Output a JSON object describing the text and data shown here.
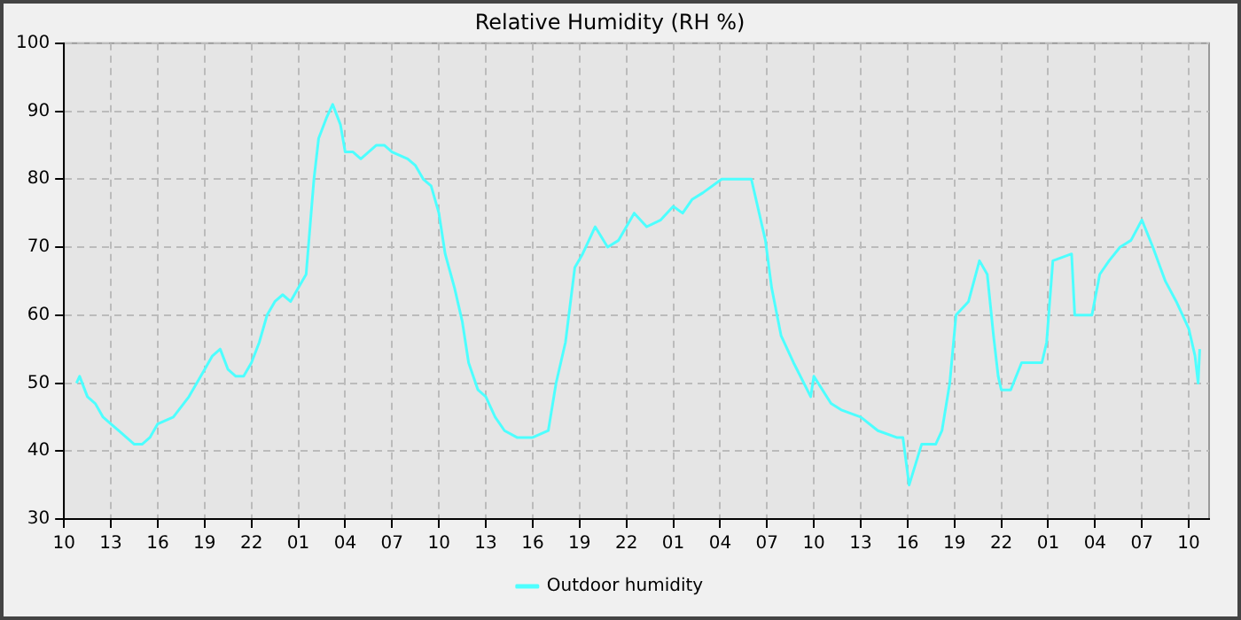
{
  "chart_data": {
    "type": "line",
    "title": "Relative Humidity (RH %)",
    "x": [
      "--01-01T10:48",
      "--01-01T11:00",
      "--01-01T11:30",
      "--01-01T12:00",
      "--01-01T12:30",
      "--01-01T13:00",
      "--01-01T13:30",
      "--01-01T14:00",
      "--01-01T14:30",
      "--01-01T15:00",
      "--01-01T15:30",
      "--01-01T16:00",
      "--01-01T17:00",
      "--01-01T18:00",
      "--01-01T18:30",
      "--01-01T19:00",
      "--01-01T19:30",
      "--01-01T20:00",
      "--01-01T20:30",
      "--01-01T21:00",
      "--01-01T21:30",
      "--01-01T22:00",
      "--01-01T22:30",
      "--01-01T23:00",
      "--01-01T23:30",
      "--01-02T00:00",
      "--01-02T00:30",
      "--01-02T01:00",
      "--01-02T01:30",
      "--01-02T02:00",
      "--01-02T02:18",
      "--01-02T02:48",
      "--01-02T03:12",
      "--01-02T03:42",
      "--01-02T04:00",
      "--01-02T04:30",
      "--01-02T05:00",
      "--01-02T05:30",
      "--01-02T06:00",
      "--01-02T06:30",
      "--01-02T07:00",
      "--01-02T08:00",
      "--01-02T08:30",
      "--01-02T09:00",
      "--01-02T09:30",
      "--01-02T10:00",
      "--01-02T10:24",
      "--01-02T11:00",
      "--01-02T11:30",
      "--01-02T11:54",
      "--01-02T12:30",
      "--01-02T13:00",
      "--01-02T13:36",
      "--01-02T14:12",
      "--01-02T15:00",
      "--01-02T16:00",
      "--01-02T17:00",
      "--01-02T17:30",
      "--01-02T18:06",
      "--01-02T18:42",
      "--01-02T19:12",
      "--01-02T20:00",
      "--01-02T20:48",
      "--01-02T21:30",
      "--01-02T22:30",
      "--01-02T23:18",
      "--01-03T00:12",
      "--01-03T01:00",
      "--01-03T01:36",
      "--01-03T02:12",
      "--01-03T02:54",
      "--01-03T04:06",
      "--01-03T05:12",
      "--01-03T06:00",
      "--01-03T06:30",
      "--01-03T06:54",
      "--01-03T07:18",
      "--01-03T07:54",
      "--01-03T08:42",
      "--01-03T09:48",
      "--01-03T10:00",
      "--01-03T11:06",
      "--01-03T11:48",
      "--01-03T13:00",
      "--01-03T14:06",
      "--01-03T15:18",
      "--01-03T15:42",
      "--01-03T16:06",
      "--01-03T16:30",
      "--01-03T16:54",
      "--01-03T17:48",
      "--01-03T18:12",
      "--01-03T18:42",
      "--01-03T19:06",
      "--01-03T19:54",
      "--01-03T20:36",
      "--01-03T21:06",
      "--01-03T21:30",
      "--01-03T21:48",
      "--01-03T22:00",
      "--01-03T22:36",
      "--01-03T23:18",
      "--01-04T00:36",
      "--01-04T00:54",
      "--01-04T01:18",
      "--01-04T02:30",
      "--01-04T02:42",
      "--01-04T03:48",
      "--01-04T04:18",
      "--01-04T04:54",
      "--01-04T05:36",
      "--01-04T06:18",
      "--01-04T07:00",
      "--01-04T07:42",
      "--01-04T08:30",
      "--01-04T09:12",
      "--01-04T10:00",
      "--01-04T10:24",
      "--01-04T10:36",
      "--01-04T10:42"
    ],
    "series": [
      {
        "name": "Outdoor humidity",
        "color": "#4dffff",
        "values": [
          50,
          51,
          48,
          47,
          45,
          44,
          43,
          42,
          41,
          41,
          42,
          44,
          45,
          48,
          50,
          52,
          54,
          55,
          52,
          51,
          51,
          53,
          56,
          60,
          62,
          63,
          62,
          64,
          66,
          80,
          86,
          89,
          91,
          88,
          84,
          84,
          83,
          84,
          85,
          85,
          84,
          83,
          82,
          80,
          79,
          75,
          69,
          64,
          59,
          53,
          49,
          48,
          45,
          43,
          42,
          42,
          43,
          50,
          56,
          67,
          69,
          73,
          70,
          71,
          75,
          73,
          74,
          76,
          75,
          77,
          78,
          80,
          80,
          80,
          75,
          71,
          64,
          57,
          53,
          48,
          51,
          47,
          46,
          45,
          43,
          42,
          42,
          35,
          38,
          41,
          41,
          43,
          50,
          60,
          62,
          68,
          66,
          57,
          51,
          49,
          49,
          53,
          53,
          56,
          68,
          69,
          60,
          60,
          66,
          68,
          70,
          71,
          74,
          70,
          65,
          62,
          58,
          54,
          50,
          55
        ]
      }
    ],
    "xlim": [
      "--01-01T10:00",
      "--01-04T11:18"
    ],
    "xticks": [
      {
        "value": "--01-01T10:00",
        "label": "10"
      },
      {
        "value": "--01-01T13:00",
        "label": "13"
      },
      {
        "value": "--01-01T16:00",
        "label": "16"
      },
      {
        "value": "--01-01T19:00",
        "label": "19"
      },
      {
        "value": "--01-01T22:00",
        "label": "22"
      },
      {
        "value": "--01-02T01:00",
        "label": "01"
      },
      {
        "value": "--01-02T04:00",
        "label": "04"
      },
      {
        "value": "--01-02T07:00",
        "label": "07"
      },
      {
        "value": "--01-02T10:00",
        "label": "10"
      },
      {
        "value": "--01-02T13:00",
        "label": "13"
      },
      {
        "value": "--01-02T16:00",
        "label": "16"
      },
      {
        "value": "--01-02T19:00",
        "label": "19"
      },
      {
        "value": "--01-02T22:00",
        "label": "22"
      },
      {
        "value": "--01-03T01:00",
        "label": "01"
      },
      {
        "value": "--01-03T04:00",
        "label": "04"
      },
      {
        "value": "--01-03T07:00",
        "label": "07"
      },
      {
        "value": "--01-03T10:00",
        "label": "10"
      },
      {
        "value": "--01-03T13:00",
        "label": "13"
      },
      {
        "value": "--01-03T16:00",
        "label": "16"
      },
      {
        "value": "--01-03T19:00",
        "label": "19"
      },
      {
        "value": "--01-03T22:00",
        "label": "22"
      },
      {
        "value": "--01-04T01:00",
        "label": "01"
      },
      {
        "value": "--01-04T04:00",
        "label": "04"
      },
      {
        "value": "--01-04T07:00",
        "label": "07"
      },
      {
        "value": "--01-04T10:00",
        "label": "10"
      }
    ],
    "ylim": [
      30,
      100
    ],
    "yticks": [
      30,
      40,
      50,
      60,
      70,
      80,
      90,
      100
    ],
    "grid": true,
    "legend": "bottom",
    "marker": "none",
    "line_style": "solid"
  }
}
